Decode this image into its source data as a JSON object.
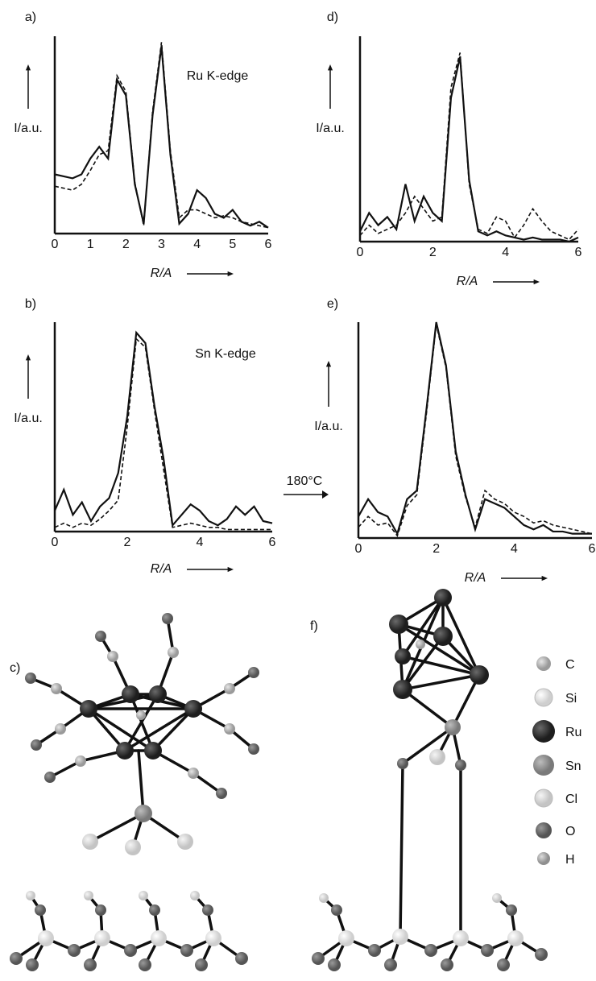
{
  "chart_data": [
    {
      "type": "line",
      "panel": "a)",
      "annotation": "Ru K-edge",
      "ylabel": "I/a.u.",
      "xlabel": "R/A",
      "x": [
        0,
        0.25,
        0.5,
        0.75,
        1,
        1.25,
        1.5,
        1.75,
        2,
        2.25,
        2.5,
        2.75,
        3,
        3.25,
        3.5,
        3.75,
        4,
        4.25,
        4.5,
        4.75,
        5,
        5.25,
        5.5,
        5.75,
        6
      ],
      "xlim": [
        0,
        6
      ],
      "xticks": [
        0,
        1,
        2,
        3,
        4,
        5,
        6
      ],
      "ylim": [
        0,
        100
      ],
      "series": [
        {
          "color": "#111111",
          "dash": false,
          "values": [
            30,
            29,
            28,
            30,
            38,
            44,
            38,
            78,
            70,
            25,
            5,
            60,
            95,
            40,
            5,
            10,
            22,
            18,
            10,
            8,
            12,
            6,
            4,
            6,
            3
          ]
        },
        {
          "color": "#111111",
          "dash": true,
          "values": [
            24,
            23,
            22,
            25,
            32,
            40,
            42,
            80,
            72,
            26,
            4,
            62,
            97,
            42,
            8,
            12,
            12,
            10,
            8,
            9,
            8,
            6,
            5,
            4,
            3
          ]
        }
      ]
    },
    {
      "type": "line",
      "panel": "d)",
      "ylabel": "I/a.u.",
      "xlabel": "R/A",
      "x": [
        0,
        0.25,
        0.5,
        0.75,
        1,
        1.25,
        1.5,
        1.75,
        2,
        2.25,
        2.5,
        2.75,
        3,
        3.25,
        3.5,
        3.75,
        4,
        4.25,
        4.5,
        4.75,
        5,
        5.25,
        5.5,
        5.75,
        6
      ],
      "xlim": [
        0,
        6
      ],
      "xticks": [
        0,
        2,
        4,
        6
      ],
      "ylim": [
        0,
        100
      ],
      "series": [
        {
          "color": "#111111",
          "dash": false,
          "values": [
            5,
            14,
            8,
            12,
            6,
            28,
            10,
            22,
            14,
            10,
            70,
            90,
            30,
            5,
            3,
            5,
            3,
            2,
            1,
            2,
            1,
            1,
            1,
            0,
            2
          ]
        },
        {
          "color": "#111111",
          "dash": true,
          "values": [
            3,
            8,
            4,
            6,
            8,
            14,
            22,
            16,
            10,
            12,
            75,
            92,
            28,
            6,
            4,
            12,
            10,
            2,
            8,
            16,
            10,
            5,
            3,
            1,
            6
          ]
        }
      ]
    },
    {
      "type": "line",
      "panel": "b)",
      "annotation": "Sn K-edge",
      "ylabel": "I/a.u.",
      "xlabel": "R/A",
      "x": [
        0,
        0.25,
        0.5,
        0.75,
        1,
        1.25,
        1.5,
        1.75,
        2,
        2.25,
        2.5,
        2.75,
        3,
        3.25,
        3.5,
        3.75,
        4,
        4.25,
        4.5,
        4.75,
        5,
        5.25,
        5.5,
        5.75,
        6
      ],
      "xlim": [
        0,
        6
      ],
      "xticks": [
        0,
        2,
        4,
        6
      ],
      "ylim": [
        0,
        100
      ],
      "series": [
        {
          "color": "#111111",
          "dash": false,
          "values": [
            10,
            20,
            8,
            14,
            5,
            12,
            16,
            28,
            55,
            95,
            90,
            60,
            35,
            3,
            8,
            13,
            10,
            5,
            3,
            6,
            12,
            8,
            12,
            5,
            4
          ]
        },
        {
          "color": "#111111",
          "dash": true,
          "values": [
            2,
            4,
            2,
            4,
            3,
            6,
            10,
            15,
            50,
            92,
            88,
            58,
            30,
            2,
            3,
            4,
            3,
            2,
            2,
            1,
            1,
            1,
            1,
            1,
            1
          ]
        }
      ]
    },
    {
      "type": "line",
      "panel": "e)",
      "ylabel": "I/a.u.",
      "xlabel": "R/A",
      "x": [
        0,
        0.25,
        0.5,
        0.75,
        1,
        1.25,
        1.5,
        1.75,
        2,
        2.25,
        2.5,
        2.75,
        3,
        3.25,
        3.5,
        3.75,
        4,
        4.25,
        4.5,
        4.75,
        5,
        5.25,
        5.5,
        5.75,
        6
      ],
      "xlim": [
        0,
        6
      ],
      "xticks": [
        0,
        2,
        4,
        6
      ],
      "ylim": [
        0,
        100
      ],
      "series": [
        {
          "color": "#111111",
          "dash": false,
          "values": [
            10,
            18,
            12,
            10,
            2,
            18,
            22,
            60,
            100,
            80,
            40,
            20,
            4,
            18,
            16,
            14,
            10,
            6,
            4,
            6,
            3,
            3,
            2,
            2,
            2
          ]
        },
        {
          "color": "#111111",
          "dash": true,
          "values": [
            5,
            10,
            6,
            7,
            1,
            15,
            20,
            58,
            99,
            79,
            38,
            19,
            5,
            22,
            18,
            16,
            12,
            10,
            7,
            8,
            6,
            5,
            4,
            3,
            2
          ]
        }
      ]
    }
  ],
  "transition_label": "180°C",
  "structures": {
    "panels": [
      "c)",
      "f)"
    ],
    "legend": [
      "C",
      "Si",
      "Ru",
      "Sn",
      "Cl",
      "O",
      "H"
    ]
  }
}
